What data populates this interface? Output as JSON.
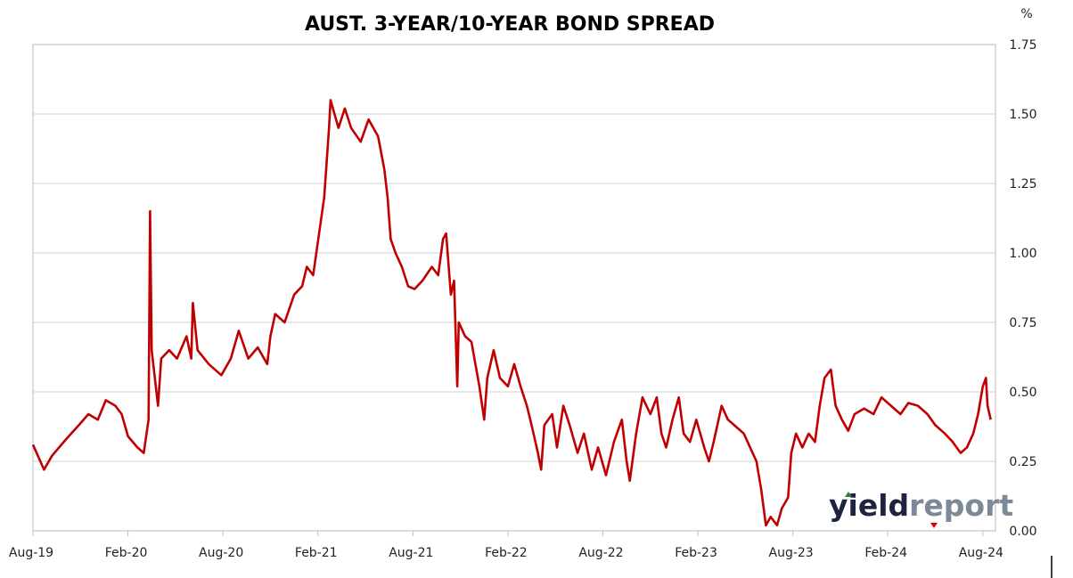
{
  "chart_data": {
    "type": "line",
    "title": "AUST. 3-YEAR/10-YEAR BOND SPREAD",
    "ylabel": "%",
    "xlabel": "",
    "x_unit": "months since Aug-19",
    "xlim": [
      0,
      60.8
    ],
    "ylim": [
      0,
      1.75
    ],
    "grid": "horizontal",
    "y_ticks": [
      "0.00",
      "0.25",
      "0.50",
      "0.75",
      "1.00",
      "1.25",
      "1.50",
      "1.75"
    ],
    "y_tick_values": [
      0,
      0.25,
      0.5,
      0.75,
      1.0,
      1.25,
      1.5,
      1.75
    ],
    "x_ticks": [
      "Aug-19",
      "Feb-20",
      "Aug-20",
      "Feb-21",
      "Aug-21",
      "Feb-22",
      "Aug-22",
      "Feb-23",
      "Aug-23",
      "Feb-24",
      "Aug-24"
    ],
    "x_tick_values": [
      0,
      6,
      12,
      18,
      24,
      30,
      36,
      42,
      48,
      54,
      60
    ],
    "series": [
      {
        "name": "3-year/10-year spread",
        "color": "#c00000",
        "x": [
          0,
          0.7,
          1.2,
          2.1,
          2.9,
          3.5,
          4.1,
          4.6,
          5.2,
          5.6,
          6.0,
          6.6,
          7.0,
          7.3,
          7.4,
          7.5,
          7.9,
          8.1,
          8.6,
          9.1,
          9.7,
          10.0,
          10.1,
          10.4,
          11.1,
          11.9,
          12.5,
          13.0,
          13.6,
          14.2,
          14.8,
          15.0,
          15.3,
          15.9,
          16.5,
          17.0,
          17.3,
          17.7,
          18.1,
          18.4,
          18.7,
          18.8,
          19.3,
          19.7,
          20.1,
          20.7,
          21.2,
          21.8,
          22.2,
          22.4,
          22.6,
          22.9,
          23.3,
          23.7,
          24.1,
          24.6,
          25.2,
          25.6,
          25.9,
          26.1,
          26.4,
          26.6,
          26.8,
          26.9,
          27.3,
          27.7,
          28.2,
          28.5,
          28.7,
          29.1,
          29.5,
          30.0,
          30.4,
          30.8,
          31.2,
          31.5,
          31.9,
          32.1,
          32.3,
          32.8,
          33.1,
          33.5,
          33.9,
          34.4,
          34.8,
          35.3,
          35.7,
          36.2,
          36.7,
          37.2,
          37.5,
          37.7,
          38.1,
          38.5,
          39.0,
          39.4,
          39.7,
          40.0,
          40.4,
          40.8,
          41.1,
          41.5,
          41.9,
          42.4,
          42.7,
          43.0,
          43.5,
          43.9,
          44.3,
          44.9,
          45.3,
          45.7,
          46.0,
          46.3,
          46.6,
          47.0,
          47.3,
          47.7,
          47.9,
          48.2,
          48.6,
          49.0,
          49.4,
          49.7,
          50.0,
          50.4,
          50.7,
          51.1,
          51.5,
          51.9,
          52.5,
          53.1,
          53.6,
          54.2,
          54.8,
          55.3,
          55.9,
          56.5,
          57.0,
          57.6,
          58.1,
          58.6,
          59.0,
          59.4,
          59.7,
          60.0,
          60.2,
          60.3,
          60.5
        ],
        "values": [
          0.31,
          0.22,
          0.27,
          0.33,
          0.38,
          0.42,
          0.4,
          0.47,
          0.45,
          0.42,
          0.34,
          0.3,
          0.28,
          0.4,
          1.15,
          0.65,
          0.45,
          0.62,
          0.65,
          0.62,
          0.7,
          0.62,
          0.82,
          0.65,
          0.6,
          0.56,
          0.62,
          0.72,
          0.62,
          0.66,
          0.6,
          0.7,
          0.78,
          0.75,
          0.85,
          0.88,
          0.95,
          0.92,
          1.08,
          1.2,
          1.45,
          1.55,
          1.45,
          1.52,
          1.45,
          1.4,
          1.48,
          1.42,
          1.3,
          1.2,
          1.05,
          1.0,
          0.95,
          0.88,
          0.87,
          0.9,
          0.95,
          0.92,
          1.05,
          1.07,
          0.85,
          0.9,
          0.52,
          0.75,
          0.7,
          0.68,
          0.52,
          0.4,
          0.55,
          0.65,
          0.55,
          0.52,
          0.6,
          0.52,
          0.45,
          0.38,
          0.28,
          0.22,
          0.38,
          0.42,
          0.3,
          0.45,
          0.38,
          0.28,
          0.35,
          0.22,
          0.3,
          0.2,
          0.32,
          0.4,
          0.25,
          0.18,
          0.35,
          0.48,
          0.42,
          0.48,
          0.35,
          0.3,
          0.4,
          0.48,
          0.35,
          0.32,
          0.4,
          0.3,
          0.25,
          0.32,
          0.45,
          0.4,
          0.38,
          0.35,
          0.3,
          0.25,
          0.15,
          0.02,
          0.05,
          0.02,
          0.08,
          0.12,
          0.28,
          0.35,
          0.3,
          0.35,
          0.32,
          0.45,
          0.55,
          0.58,
          0.45,
          0.4,
          0.36,
          0.42,
          0.44,
          0.42,
          0.48,
          0.45,
          0.42,
          0.46,
          0.45,
          0.42,
          0.38,
          0.35,
          0.32,
          0.28,
          0.3,
          0.35,
          0.42,
          0.52,
          0.55,
          0.45,
          0.4
        ]
      }
    ]
  },
  "logo": {
    "part1": "yield",
    "part2": "report"
  }
}
